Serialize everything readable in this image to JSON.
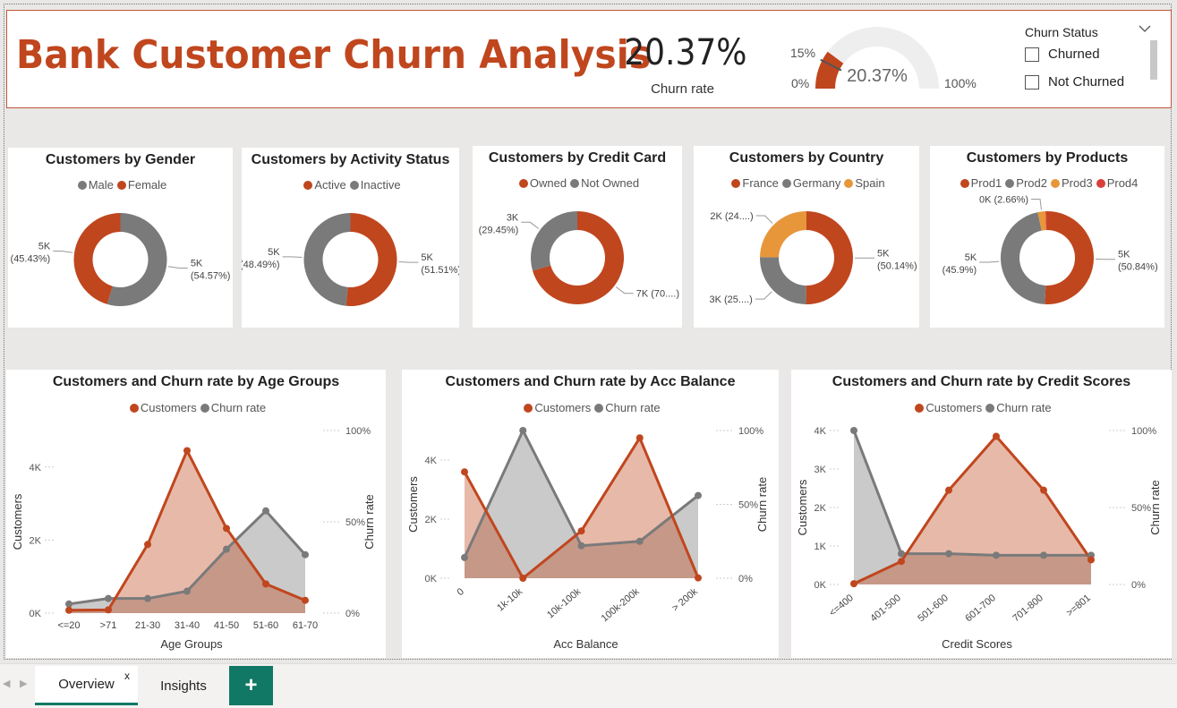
{
  "header": {
    "title": "Bank Customer Churn Analysis",
    "kpi": {
      "value": "20.37%",
      "label": "Churn rate"
    },
    "gauge": {
      "min_label": "0%",
      "max_label": "100%",
      "target_label": "15%",
      "value_label": "20.37%",
      "value": 0.2037,
      "target": 0.15
    },
    "slicer": {
      "title": "Churn Status",
      "options": [
        "Churned",
        "Not Churned"
      ]
    }
  },
  "colors": {
    "orange": "#c0461e",
    "gray": "#7a7a7a",
    "light_orange": "#e8963a",
    "red": "#d8403a"
  },
  "donuts": [
    {
      "title": "Customers by Gender",
      "legend": [
        {
          "label": "Male",
          "color": "#7a7a7a"
        },
        {
          "label": "Female",
          "color": "#c0461e"
        }
      ],
      "chart_data": {
        "type": "pie",
        "slices": [
          {
            "label": "Male",
            "share": 54.57,
            "color": "#7a7a7a",
            "text": "5K",
            "pct": "(54.57%)"
          },
          {
            "label": "Female",
            "share": 45.43,
            "color": "#c0461e",
            "text": "5K",
            "pct": "(45.43%)"
          }
        ]
      }
    },
    {
      "title": "Customers by Activity Status",
      "legend": [
        {
          "label": "Active",
          "color": "#c0461e"
        },
        {
          "label": "Inactive",
          "color": "#7a7a7a"
        }
      ],
      "chart_data": {
        "type": "pie",
        "slices": [
          {
            "label": "Active",
            "share": 51.51,
            "color": "#c0461e",
            "text": "5K",
            "pct": "(51.51%)"
          },
          {
            "label": "Inactive",
            "share": 48.49,
            "color": "#7a7a7a",
            "text": "5K",
            "pct": "(48.49%)"
          }
        ]
      }
    },
    {
      "title": "Customers by Credit Card",
      "legend": [
        {
          "label": "Owned",
          "color": "#c0461e"
        },
        {
          "label": "Not Owned",
          "color": "#7a7a7a"
        }
      ],
      "chart_data": {
        "type": "pie",
        "slices": [
          {
            "label": "Owned",
            "share": 70.55,
            "color": "#c0461e",
            "text": "7K (70....)",
            "pct": ""
          },
          {
            "label": "Not Owned",
            "share": 29.45,
            "color": "#7a7a7a",
            "text": "3K",
            "pct": "(29.45%)"
          }
        ]
      }
    },
    {
      "title": "Customers by Country",
      "legend": [
        {
          "label": "France",
          "color": "#c0461e"
        },
        {
          "label": "Germany",
          "color": "#7a7a7a"
        },
        {
          "label": "Spain",
          "color": "#e8963a"
        }
      ],
      "chart_data": {
        "type": "pie",
        "slices": [
          {
            "label": "France",
            "share": 50.14,
            "color": "#c0461e",
            "text": "5K",
            "pct": "(50.14%)"
          },
          {
            "label": "Germany",
            "share": 25.09,
            "color": "#7a7a7a",
            "text": "3K (25....)",
            "pct": ""
          },
          {
            "label": "Spain",
            "share": 24.77,
            "color": "#e8963a",
            "text": "2K (24....)",
            "pct": ""
          }
        ]
      }
    },
    {
      "title": "Customers by Products",
      "legend": [
        {
          "label": "Prod1",
          "color": "#c0461e"
        },
        {
          "label": "Prod2",
          "color": "#7a7a7a"
        },
        {
          "label": "Prod3",
          "color": "#e8963a"
        },
        {
          "label": "Prod4",
          "color": "#d8403a"
        }
      ],
      "chart_data": {
        "type": "pie",
        "slices": [
          {
            "label": "Prod1",
            "share": 50.84,
            "color": "#c0461e",
            "text": "5K",
            "pct": "(50.84%)"
          },
          {
            "label": "Prod2",
            "share": 45.9,
            "color": "#7a7a7a",
            "text": "5K",
            "pct": "(45.9%)"
          },
          {
            "label": "Prod3",
            "share": 2.66,
            "color": "#e8963a",
            "text": "0K (2.66%)",
            "pct": ""
          },
          {
            "label": "Prod4",
            "share": 0.6,
            "color": "#d8403a",
            "text": "",
            "pct": ""
          }
        ]
      }
    }
  ],
  "combos": [
    {
      "title": "Customers and Churn rate by Age Groups",
      "legend": [
        "Customers",
        "Churn rate"
      ],
      "chart_data": {
        "type": "area",
        "xlabel": "Age Groups",
        "ylabel": "Customers",
        "y2label": "Churn rate",
        "categories": [
          "<=20",
          ">71",
          "21-30",
          "31-40",
          "41-50",
          "51-60",
          "61-70"
        ],
        "customers": [
          80,
          90,
          1880,
          4450,
          2320,
          800,
          350
        ],
        "churn_rate": [
          5,
          8,
          8,
          12,
          35,
          56,
          32
        ],
        "yticks": [
          "0K",
          "2K",
          "4K"
        ],
        "y2ticks": [
          "0%",
          "50%",
          "100%"
        ],
        "ylim": [
          0,
          5000
        ],
        "y2lim": [
          0,
          100
        ]
      }
    },
    {
      "title": "Customers and Churn rate by Acc Balance",
      "legend": [
        "Customers",
        "Churn rate"
      ],
      "chart_data": {
        "type": "area",
        "xlabel": "Acc Balance",
        "ylabel": "Customers",
        "y2label": "Churn rate",
        "categories": [
          "0",
          "1k-10k",
          "10k-100k",
          "100k-200k",
          "> 200k"
        ],
        "customers": [
          3600,
          0,
          1600,
          4750,
          10
        ],
        "churn_rate": [
          14,
          100,
          22,
          25,
          56
        ],
        "yticks": [
          "0K",
          "2K",
          "4K"
        ],
        "y2ticks": [
          "0%",
          "50%",
          "100%"
        ],
        "ylim": [
          0,
          5000
        ],
        "y2lim": [
          0,
          100
        ]
      }
    },
    {
      "title": "Customers and Churn rate by Credit Scores",
      "legend": [
        "Customers",
        "Churn rate"
      ],
      "chart_data": {
        "type": "area",
        "xlabel": "Credit Scores",
        "ylabel": "Customers",
        "y2label": "Churn rate",
        "categories": [
          "<=400",
          "401-500",
          "501-600",
          "601-700",
          "701-800",
          ">=801"
        ],
        "customers": [
          20,
          600,
          2450,
          3850,
          2450,
          640
        ],
        "churn_rate": [
          100,
          20,
          20,
          19,
          19,
          19
        ],
        "yticks": [
          "0K",
          "1K",
          "2K",
          "3K",
          "4K"
        ],
        "y2ticks": [
          "0%",
          "50%",
          "100%"
        ],
        "ylim": [
          0,
          4000
        ],
        "y2lim": [
          0,
          100
        ]
      }
    }
  ],
  "tabs": {
    "items": [
      "Overview",
      "Insights"
    ],
    "add": "+",
    "close": "x"
  }
}
